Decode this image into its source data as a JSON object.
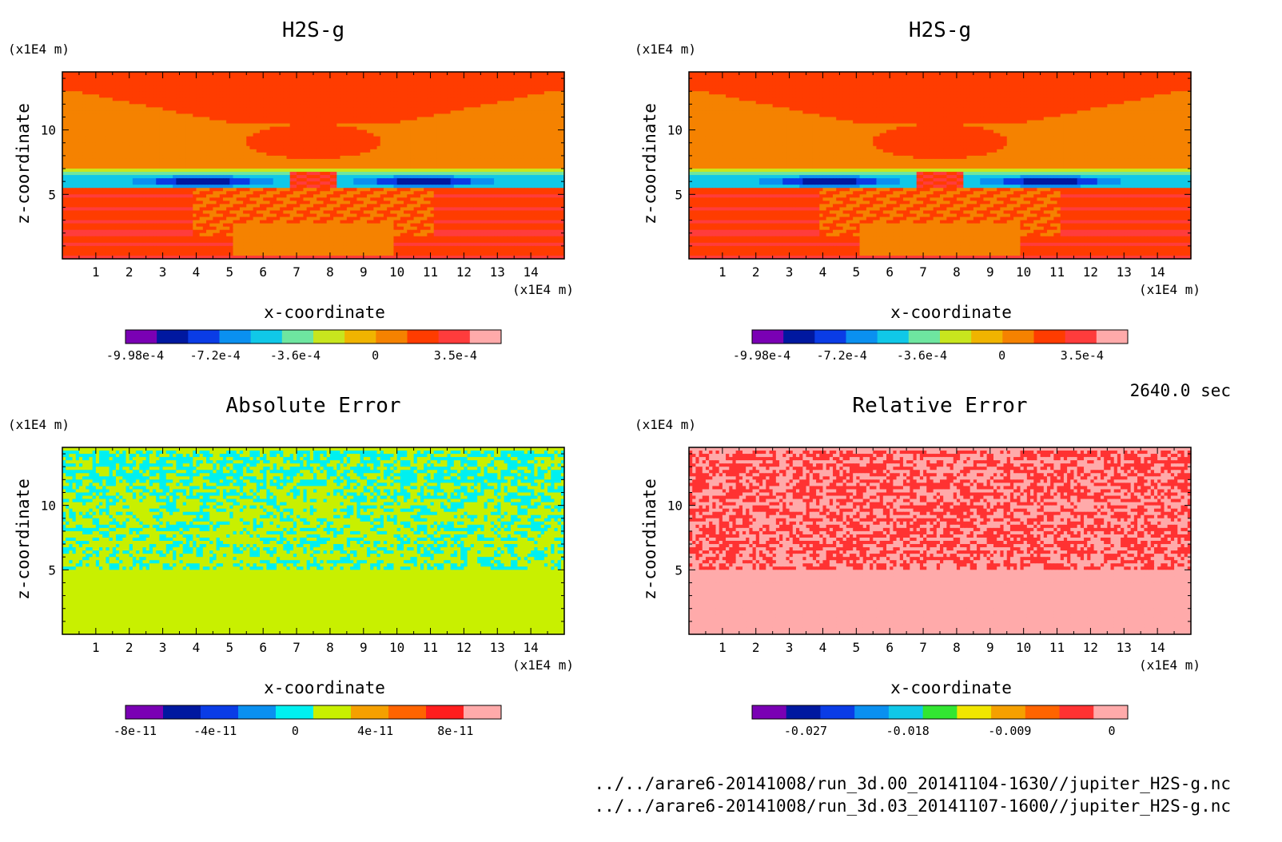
{
  "time_label": "2640.0 sec",
  "footer": {
    "file_1": "../../arare6-20141008/run_3d.00_20141104-1630//jupiter_H2S-g.nc",
    "file_2": "../../arare6-20141008/run_3d.03_20141107-1600//jupiter_H2S-g.nc"
  },
  "chart_data": [
    {
      "type": "heatmap",
      "title": "H2S-g",
      "xlabel": "x-coordinate",
      "ylabel": "z-coordinate",
      "x_unit": "(x1E4 m)",
      "z_unit": "(x1E4 m)",
      "xlim": [
        0,
        15
      ],
      "ylim": [
        0,
        14.5
      ],
      "x_ticks": [
        "1",
        "2",
        "3",
        "4",
        "5",
        "6",
        "7",
        "8",
        "9",
        "10",
        "11",
        "12",
        "13",
        "14"
      ],
      "y_ticks": [
        "5",
        "10"
      ],
      "field": "h2s",
      "colorbar": {
        "colors": [
          "#7a00b4",
          "#0018a0",
          "#0a3ce6",
          "#0a90f0",
          "#10c8e8",
          "#6ee6a0",
          "#c8e61e",
          "#f0b400",
          "#f58200",
          "#ff3c00",
          "#ff3c3c",
          "#ffaaaa"
        ],
        "tick_labels": [
          "-9.98e-4",
          "-7.2e-4",
          "-3.6e-4",
          "0",
          "3.5e-4"
        ]
      }
    },
    {
      "type": "heatmap",
      "title": "H2S-g",
      "xlabel": "x-coordinate",
      "ylabel": "z-coordinate",
      "x_unit": "(x1E4 m)",
      "z_unit": "(x1E4 m)",
      "xlim": [
        0,
        15
      ],
      "ylim": [
        0,
        14.5
      ],
      "x_ticks": [
        "1",
        "2",
        "3",
        "4",
        "5",
        "6",
        "7",
        "8",
        "9",
        "10",
        "11",
        "12",
        "13",
        "14"
      ],
      "y_ticks": [
        "5",
        "10"
      ],
      "field": "h2s",
      "colorbar": {
        "colors": [
          "#7a00b4",
          "#0018a0",
          "#0a3ce6",
          "#0a90f0",
          "#10c8e8",
          "#6ee6a0",
          "#c8e61e",
          "#f0b400",
          "#f58200",
          "#ff3c00",
          "#ff3c3c",
          "#ffaaaa"
        ],
        "tick_labels": [
          "-9.98e-4",
          "-7.2e-4",
          "-3.6e-4",
          "0",
          "3.5e-4"
        ]
      }
    },
    {
      "type": "heatmap",
      "title": "Absolute Error",
      "xlabel": "x-coordinate",
      "ylabel": "z-coordinate",
      "x_unit": "(x1E4 m)",
      "z_unit": "(x1E4 m)",
      "xlim": [
        0,
        15
      ],
      "ylim": [
        0,
        14.5
      ],
      "x_ticks": [
        "1",
        "2",
        "3",
        "4",
        "5",
        "6",
        "7",
        "8",
        "9",
        "10",
        "11",
        "12",
        "13",
        "14"
      ],
      "y_ticks": [
        "5",
        "10"
      ],
      "field": "abs_error",
      "colorbar": {
        "colors": [
          "#7a00b4",
          "#0018a0",
          "#0a3ce6",
          "#0a90f0",
          "#00f0f0",
          "#c8f000",
          "#f5a000",
          "#ff6400",
          "#ff1e1e",
          "#ffaaaa"
        ],
        "tick_labels": [
          "-8e-11",
          "-4e-11",
          "0",
          "4e-11",
          "8e-11"
        ]
      }
    },
    {
      "type": "heatmap",
      "title": "Relative Error",
      "xlabel": "x-coordinate",
      "ylabel": "z-coordinate",
      "x_unit": "(x1E4 m)",
      "z_unit": "(x1E4 m)",
      "xlim": [
        0,
        15
      ],
      "ylim": [
        0,
        14.5
      ],
      "x_ticks": [
        "1",
        "2",
        "3",
        "4",
        "5",
        "6",
        "7",
        "8",
        "9",
        "10",
        "11",
        "12",
        "13",
        "14"
      ],
      "y_ticks": [
        "5",
        "10"
      ],
      "field": "rel_error",
      "colorbar": {
        "colors": [
          "#7a00b4",
          "#0018a0",
          "#0a3ce6",
          "#0a90f0",
          "#10c8e8",
          "#32e632",
          "#f0e600",
          "#f5a000",
          "#ff6400",
          "#ff3232",
          "#ffaaaa"
        ],
        "tick_labels": [
          "-0.027",
          "-0.018",
          "-0.009",
          "0"
        ]
      }
    }
  ]
}
